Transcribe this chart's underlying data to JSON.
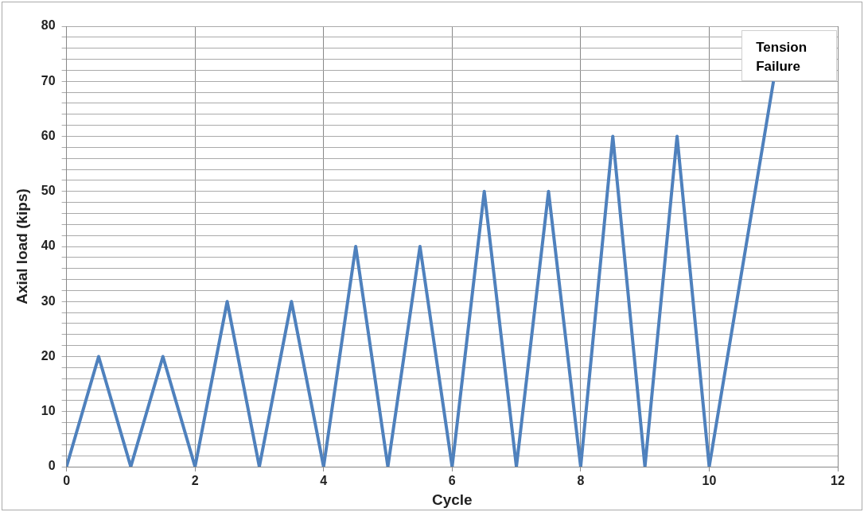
{
  "chart_data": {
    "type": "line",
    "xlabel": "Cycle",
    "ylabel": "Axial load (kips)",
    "x": [
      0,
      0.5,
      1,
      1.5,
      2,
      2.5,
      3,
      3.5,
      4,
      4.5,
      5,
      5.5,
      6,
      6.5,
      7,
      7.5,
      8,
      8.5,
      9,
      9.5,
      10,
      11
    ],
    "series": [
      {
        "color": "#4f81bd",
        "values": [
          0,
          20,
          0,
          20,
          0,
          30,
          0,
          30,
          0,
          40,
          0,
          40,
          0,
          50,
          0,
          50,
          0,
          60,
          0,
          60,
          0,
          70
        ]
      }
    ],
    "xlim": [
      0,
      12
    ],
    "xticks": [
      0,
      2,
      4,
      6,
      8,
      10,
      12
    ],
    "ylim": [
      0,
      80
    ],
    "yticks": [
      0,
      {
        "value": 2,
        "label": null
      },
      {
        "value": 4,
        "label": null
      },
      {
        "value": 6,
        "label": null
      },
      {
        "value": 8,
        "label": null
      },
      10,
      {
        "value": 12,
        "label": null
      },
      {
        "value": 14,
        "label": null
      },
      {
        "value": 16,
        "label": null
      },
      {
        "value": 18,
        "label": null
      },
      20,
      {
        "value": 22,
        "label": null
      },
      {
        "value": 24,
        "label": null
      },
      {
        "value": 26,
        "label": null
      },
      {
        "value": 28,
        "label": null
      },
      30,
      {
        "value": 32,
        "label": null
      },
      {
        "value": 34,
        "label": null
      },
      {
        "value": 36,
        "label": null
      },
      {
        "value": 38,
        "label": null
      },
      40,
      {
        "value": 42,
        "label": null
      },
      {
        "value": 44,
        "label": null
      },
      {
        "value": 46,
        "label": null
      },
      {
        "value": 48,
        "label": null
      },
      50,
      {
        "value": 52,
        "label": null
      },
      {
        "value": 54,
        "label": null
      },
      {
        "value": 56,
        "label": null
      },
      {
        "value": 58,
        "label": null
      },
      60,
      {
        "value": 62,
        "label": null
      },
      {
        "value": 64,
        "label": null
      },
      {
        "value": 66,
        "label": null
      },
      {
        "value": 68,
        "label": null
      },
      70,
      {
        "value": 72,
        "label": null
      },
      {
        "value": 74,
        "label": null
      },
      {
        "value": 76,
        "label": null
      },
      {
        "value": 78,
        "label": null
      },
      80
    ],
    "grid": true,
    "legend": false,
    "marker": "none",
    "line_style": "solid",
    "annotations": [
      {
        "text": "Tension Failure",
        "x": 11,
        "y": 70
      }
    ]
  }
}
